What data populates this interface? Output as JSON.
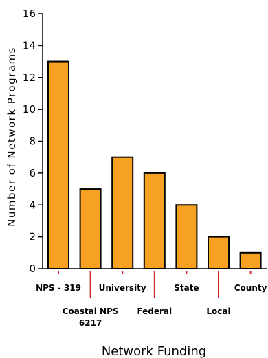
{
  "chart_data": {
    "type": "bar",
    "title": "",
    "xlabel": "Network Funding",
    "ylabel": "Number of Network Programs",
    "ylim": [
      0,
      16
    ],
    "yticks": [
      0,
      2,
      4,
      6,
      8,
      10,
      12,
      14,
      16
    ],
    "categories": [
      "NPS - 319",
      "Coastal NPS 6217",
      "University",
      "Federal",
      "State",
      "Local",
      "County"
    ],
    "category_lines": [
      [
        "NPS - 319"
      ],
      [
        "Coastal NPS",
        "6217"
      ],
      [
        "University"
      ],
      [
        "Federal"
      ],
      [
        "State"
      ],
      [
        "Local"
      ],
      [
        "County"
      ]
    ],
    "values": [
      13,
      5,
      7,
      6,
      4,
      2,
      1
    ],
    "grid": false,
    "colors": {
      "bar_fill": "#f7a123",
      "bar_stroke": "#000000",
      "tick_marker": "#d62728",
      "axis": "#000000"
    }
  }
}
